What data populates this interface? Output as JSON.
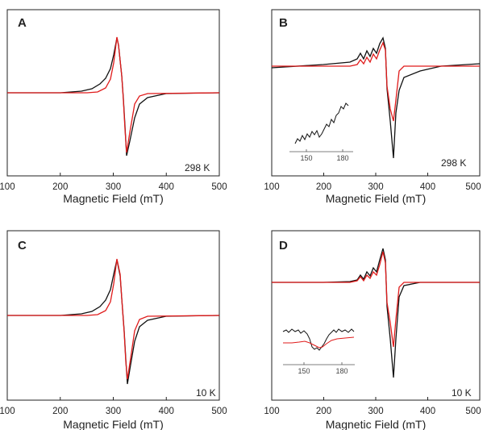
{
  "panels": [
    {
      "id": "A",
      "letter": "A",
      "temperature": "298 K",
      "xlabel": "Magnetic Field (mT)",
      "xticks": [
        "100",
        "200",
        "300",
        "400",
        "500"
      ],
      "inset": null
    },
    {
      "id": "B",
      "letter": "B",
      "temperature": "298 K",
      "xlabel": "Magnetic Field (mT)",
      "xticks": [
        "100",
        "200",
        "300",
        "400",
        "500"
      ],
      "inset": {
        "xticks": [
          "150",
          "180"
        ]
      }
    },
    {
      "id": "C",
      "letter": "C",
      "temperature": "10 K",
      "xlabel": "Magnetic Field (mT)",
      "xticks": [
        "100",
        "200",
        "300",
        "400",
        "500"
      ],
      "inset": null
    },
    {
      "id": "D",
      "letter": "D",
      "temperature": "10 K",
      "xlabel": "Magnetic Field (mT)",
      "xticks": [
        "100",
        "200",
        "300",
        "400",
        "500"
      ],
      "inset": {
        "xticks": [
          "150",
          "180"
        ]
      }
    }
  ],
  "colors": {
    "experimental": "#111111",
    "simulated": "#e01b1b",
    "axis": "#222222"
  },
  "chart_data": [
    {
      "panel": "A",
      "type": "line",
      "xlabel": "Magnetic Field (mT)",
      "xlim": [
        100,
        500
      ],
      "xticks": [
        100,
        200,
        300,
        400,
        500
      ],
      "yaxis_labeled": false,
      "annotation": "298 K",
      "series": [
        {
          "style": "black",
          "x": [
            100,
            200,
            240,
            260,
            275,
            285,
            295,
            302,
            308,
            312,
            318,
            322,
            326,
            330,
            335,
            345,
            360,
            380,
            420,
            500
          ],
          "y": [
            0,
            0,
            0.03,
            0.08,
            0.16,
            0.26,
            0.45,
            0.75,
            1.0,
            0.7,
            0.0,
            -0.5,
            -0.95,
            -0.8,
            -0.45,
            -0.22,
            -0.09,
            -0.03,
            0,
            0
          ]
        },
        {
          "style": "red",
          "x": [
            100,
            250,
            270,
            285,
            295,
            302,
            308,
            312,
            318,
            322,
            326,
            330,
            335,
            345,
            360,
            380,
            420,
            500
          ],
          "y": [
            0,
            0,
            0.02,
            0.1,
            0.3,
            0.65,
            0.97,
            0.7,
            0.0,
            -0.55,
            -0.93,
            -0.75,
            -0.35,
            -0.1,
            -0.02,
            0,
            0,
            0
          ]
        }
      ]
    },
    {
      "panel": "B",
      "type": "line",
      "xlabel": "Magnetic Field (mT)",
      "xlim": [
        100,
        500
      ],
      "xticks": [
        100,
        200,
        300,
        400,
        500
      ],
      "yaxis_labeled": false,
      "annotation": "298 K",
      "series": [
        {
          "style": "black",
          "x": [
            100,
            200,
            250,
            265,
            272,
            278,
            284,
            290,
            296,
            302,
            308,
            314,
            318,
            322,
            326,
            330,
            334,
            340,
            350,
            380,
            420,
            500
          ],
          "y": [
            0,
            0.03,
            0.08,
            0.14,
            0.26,
            0.16,
            0.3,
            0.2,
            0.36,
            0.26,
            0.42,
            0.5,
            0.4,
            -0.3,
            -0.7,
            -1.0,
            -0.55,
            -0.25,
            -0.12,
            -0.05,
            0,
            0
          ]
        },
        {
          "style": "red",
          "x": [
            100,
            250,
            265,
            272,
            278,
            284,
            290,
            296,
            302,
            308,
            314,
            318,
            322,
            326,
            330,
            334,
            340,
            350,
            380,
            500
          ],
          "y": [
            0,
            0,
            0.04,
            0.14,
            0.05,
            0.18,
            0.08,
            0.24,
            0.14,
            0.32,
            0.42,
            0.33,
            -0.2,
            -0.45,
            -0.6,
            -0.3,
            -0.05,
            0,
            0,
            0
          ]
        }
      ],
      "inset": {
        "xticks": [
          150,
          180
        ]
      }
    },
    {
      "panel": "C",
      "type": "line",
      "xlabel": "Magnetic Field (mT)",
      "xlim": [
        100,
        500
      ],
      "xticks": [
        100,
        200,
        300,
        400,
        500
      ],
      "yaxis_labeled": false,
      "annotation": "10 K",
      "series": [
        {
          "style": "black",
          "x": [
            100,
            200,
            240,
            260,
            275,
            285,
            295,
            302,
            308,
            312,
            318,
            322,
            326,
            330,
            335,
            345,
            360,
            380,
            420,
            500
          ],
          "y": [
            0,
            0,
            0.03,
            0.08,
            0.16,
            0.26,
            0.45,
            0.78,
            1.0,
            0.7,
            0.0,
            -0.5,
            -1.0,
            -0.8,
            -0.45,
            -0.22,
            -0.09,
            -0.03,
            0,
            0
          ]
        },
        {
          "style": "red",
          "x": [
            100,
            250,
            270,
            285,
            295,
            302,
            308,
            312,
            318,
            322,
            326,
            330,
            335,
            345,
            360,
            380,
            420,
            500
          ],
          "y": [
            0,
            0,
            0.02,
            0.1,
            0.3,
            0.68,
            0.98,
            0.7,
            0.0,
            -0.55,
            -0.95,
            -0.75,
            -0.35,
            -0.1,
            -0.02,
            0,
            0,
            0
          ]
        }
      ]
    },
    {
      "panel": "D",
      "type": "line",
      "xlabel": "Magnetic Field (mT)",
      "xlim": [
        100,
        500
      ],
      "xticks": [
        100,
        200,
        300,
        400,
        500
      ],
      "yaxis_labeled": false,
      "annotation": "10 K",
      "series": [
        {
          "style": "black",
          "x": [
            100,
            200,
            250,
            265,
            272,
            278,
            284,
            290,
            296,
            302,
            308,
            314,
            318,
            322,
            326,
            330,
            334,
            340,
            350,
            380,
            500
          ],
          "y": [
            0,
            0,
            0.02,
            0.06,
            0.16,
            0.08,
            0.22,
            0.14,
            0.3,
            0.22,
            0.4,
            0.55,
            0.42,
            -0.3,
            -0.7,
            -1.0,
            -0.5,
            -0.15,
            -0.03,
            0,
            0
          ]
        },
        {
          "style": "red",
          "x": [
            100,
            250,
            265,
            272,
            278,
            284,
            290,
            296,
            302,
            308,
            314,
            318,
            322,
            326,
            330,
            334,
            340,
            350,
            380,
            500
          ],
          "y": [
            0,
            0,
            0.03,
            0.12,
            0.05,
            0.16,
            0.09,
            0.22,
            0.16,
            0.34,
            0.5,
            0.38,
            -0.2,
            -0.45,
            -0.55,
            -0.3,
            -0.05,
            0,
            0,
            0
          ]
        }
      ],
      "inset": {
        "xticks": [
          150,
          180
        ]
      }
    }
  ]
}
